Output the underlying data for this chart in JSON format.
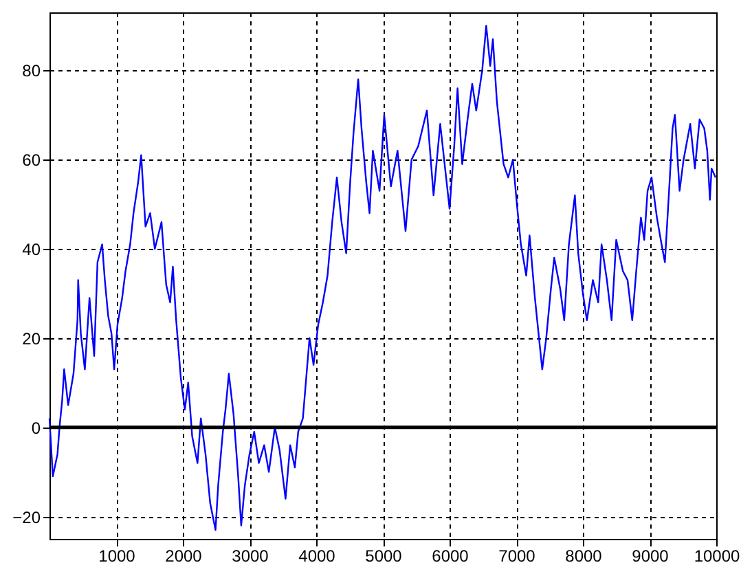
{
  "chart_data": {
    "type": "line",
    "x": [
      0,
      50,
      120,
      150,
      190,
      220,
      280,
      360,
      420,
      430,
      470,
      530,
      600,
      670,
      720,
      790,
      830,
      880,
      930,
      970,
      1020,
      1090,
      1140,
      1210,
      1260,
      1330,
      1375,
      1440,
      1510,
      1580,
      1680,
      1750,
      1810,
      1850,
      1900,
      1970,
      2030,
      2080,
      2140,
      2220,
      2270,
      2340,
      2410,
      2490,
      2530,
      2600,
      2640,
      2690,
      2760,
      2830,
      2875,
      2930,
      3000,
      3070,
      3140,
      3220,
      3290,
      3380,
      3450,
      3540,
      3610,
      3680,
      3730,
      3800,
      3850,
      3900,
      3960,
      4030,
      4100,
      4170,
      4240,
      4310,
      4380,
      4450,
      4510,
      4560,
      4630,
      4680,
      4750,
      4800,
      4850,
      4950,
      5020,
      5120,
      5220,
      5340,
      5430,
      5530,
      5660,
      5760,
      5860,
      6000,
      6070,
      6120,
      6190,
      6270,
      6340,
      6400,
      6490,
      6550,
      6610,
      6650,
      6710,
      6810,
      6880,
      6950,
      7010,
      7070,
      7150,
      7200,
      7280,
      7390,
      7450,
      7520,
      7570,
      7660,
      7720,
      7790,
      7880,
      7930,
      8000,
      8060,
      8150,
      8230,
      8280,
      8360,
      8430,
      8500,
      8600,
      8670,
      8740,
      8800,
      8870,
      8920,
      8970,
      9030,
      9110,
      9180,
      9230,
      9300,
      9345,
      9380,
      9450,
      9510,
      9610,
      9680,
      9750,
      9820,
      9865,
      9905,
      9930,
      9990
    ],
    "series": [
      {
        "color": "#0000ff",
        "values": [
          2,
          -11,
          -6,
          0,
          6,
          13,
          5,
          12,
          24,
          33,
          21,
          13,
          29,
          16,
          37,
          41,
          33,
          25,
          21,
          13,
          23,
          29,
          35,
          41,
          48,
          55,
          61,
          45,
          48,
          40,
          46,
          32,
          28,
          36,
          24,
          11,
          4,
          10,
          -2,
          -8,
          2,
          -6,
          -17,
          -23,
          -13,
          -1,
          4,
          12,
          3,
          -11,
          -22,
          -13,
          -6,
          -1,
          -8,
          -4,
          -10,
          0,
          -5,
          -16,
          -4,
          -9,
          -1,
          2,
          11,
          20,
          14,
          23,
          28,
          34,
          46,
          56,
          46,
          39,
          55,
          66,
          78,
          67,
          55,
          48,
          62,
          53,
          70,
          54,
          62,
          44,
          60,
          63,
          71,
          52,
          68,
          49,
          63,
          76,
          59,
          69,
          77,
          71,
          80,
          90,
          81,
          87,
          73,
          59,
          56,
          60,
          50,
          41,
          34,
          43,
          29,
          13,
          20,
          31,
          38,
          31,
          24,
          41,
          52,
          39,
          30,
          24,
          33,
          28,
          41,
          33,
          24,
          42,
          35,
          33,
          24,
          35,
          47,
          42,
          53,
          56,
          47,
          41,
          37,
          55,
          67,
          70,
          53,
          60,
          68,
          58,
          69,
          67,
          62,
          51,
          58,
          56
        ]
      }
    ],
    "xlim": [
      0,
      10000
    ],
    "ylim": [
      -25,
      93
    ],
    "xticks": [
      1000,
      2000,
      3000,
      4000,
      5000,
      6000,
      7000,
      8000,
      9000,
      10000
    ],
    "yticks": [
      -20,
      0,
      20,
      40,
      60,
      80
    ],
    "grid": true,
    "line_style": "solid",
    "marker": "none",
    "ref_lines": [
      {
        "axis": "y",
        "value": 0,
        "color": "#000000"
      }
    ]
  }
}
